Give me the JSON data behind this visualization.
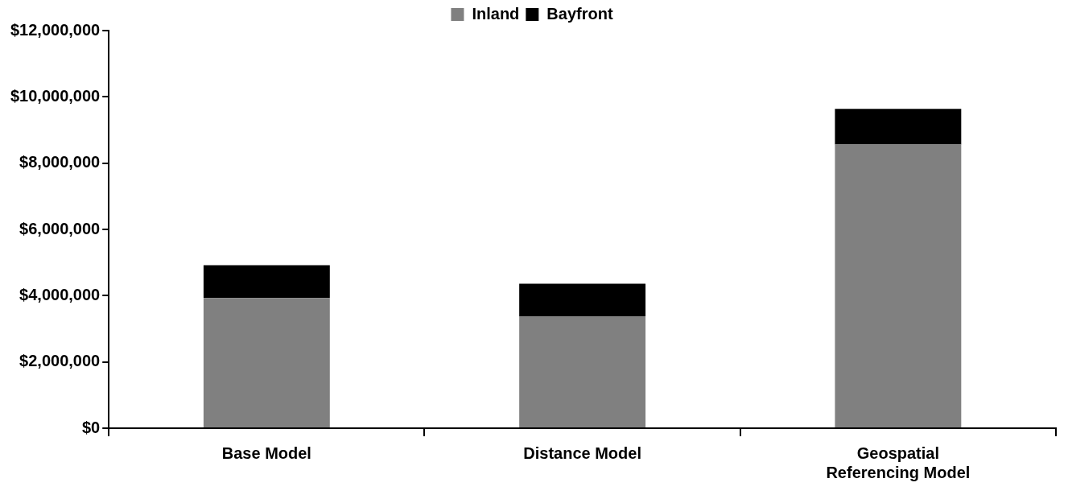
{
  "chart_data": {
    "type": "bar",
    "stacked": true,
    "legend": "top",
    "grid": false,
    "categories": [
      "Base Model",
      "Distance Model",
      "Geospatial Referencing Model"
    ],
    "series": [
      {
        "name": "Inland",
        "color": "#808080",
        "values": [
          3930000,
          3370000,
          8560000
        ]
      },
      {
        "name": "Bayfront",
        "color": "#000000",
        "values": [
          990000,
          990000,
          1080000
        ]
      }
    ],
    "ylim": [
      0,
      12000000
    ],
    "yticks": [
      {
        "value": 0,
        "label": "$0"
      },
      {
        "value": 2000000,
        "label": "$2,000,000"
      },
      {
        "value": 4000000,
        "label": "$4,000,000"
      },
      {
        "value": 6000000,
        "label": "$6,000,000"
      },
      {
        "value": 8000000,
        "label": "$8,000,000"
      },
      {
        "value": 10000000,
        "label": "$10,000,000"
      },
      {
        "value": 12000000,
        "label": "$12,000,000"
      }
    ]
  }
}
